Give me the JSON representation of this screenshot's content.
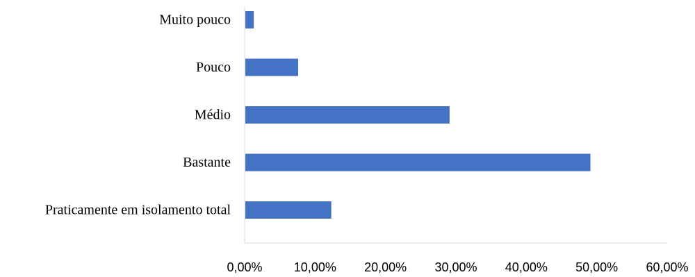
{
  "chart_data": {
    "type": "bar",
    "orientation": "horizontal",
    "categories": [
      "Muito pouco",
      "Pouco",
      "Médio",
      "Bastante",
      "Praticamente em isolamento total"
    ],
    "values": [
      1.3,
      7.6,
      29.1,
      49.1,
      12.3
    ],
    "xlim": [
      0,
      60
    ],
    "xticks": [
      0,
      10,
      20,
      30,
      40,
      50,
      60
    ],
    "xtick_labels": [
      "0,00%",
      "10,00%",
      "20,00%",
      "30,00%",
      "40,00%",
      "50,00%",
      "60,00%"
    ],
    "grid": false,
    "legend": "none",
    "colors": {
      "bar": "#4472c4",
      "axis": "#d9d9d9"
    }
  }
}
